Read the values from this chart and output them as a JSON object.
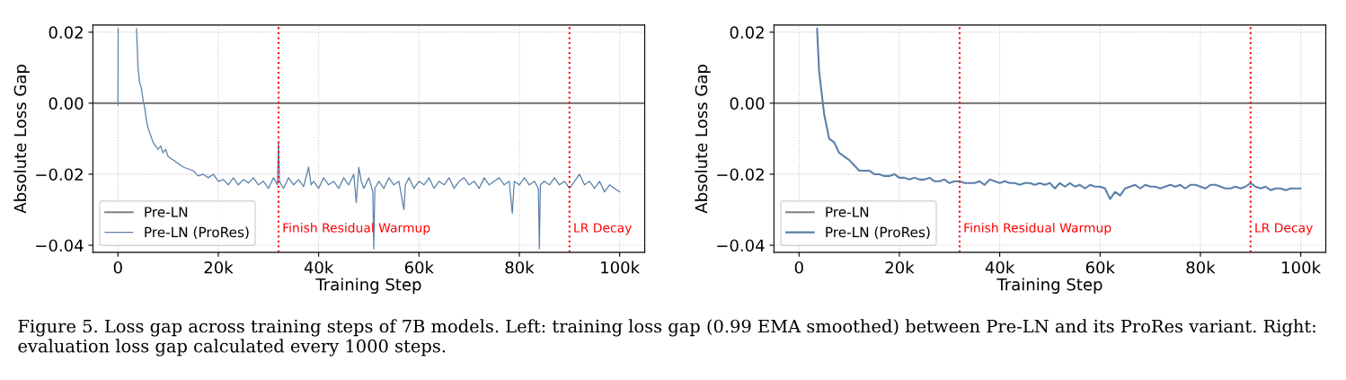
{
  "chart_data": [
    {
      "type": "line",
      "xlabel": "Training Step",
      "ylabel": "Absolute Loss Gap",
      "xlim": [
        -5000,
        105000
      ],
      "ylim": [
        -0.042,
        0.022
      ],
      "xticks": [
        {
          "value": 0,
          "label": "0"
        },
        {
          "value": 20000,
          "label": "20k"
        },
        {
          "value": 40000,
          "label": "40k"
        },
        {
          "value": 60000,
          "label": "60k"
        },
        {
          "value": 80000,
          "label": "80k"
        },
        {
          "value": 100000,
          "label": "100k"
        }
      ],
      "yticks": [
        {
          "value": -0.04,
          "label": "−0.04"
        },
        {
          "value": -0.02,
          "label": "−0.02"
        },
        {
          "value": 0,
          "label": "0.00"
        },
        {
          "value": 0.02,
          "label": "0.02"
        }
      ],
      "grid": true,
      "legend": "bottom left",
      "ref_lines": [
        {
          "axis": "x",
          "value": 32000,
          "label": "Finish Residual Warmup",
          "color": "#ff0000",
          "line_style": "dotted"
        },
        {
          "axis": "x",
          "value": 90000,
          "label": "LR Decay",
          "color": "#ff0000",
          "line_style": "dotted"
        }
      ],
      "series": [
        {
          "name": "Pre-LN",
          "color": "#808080",
          "x": [
            -5000,
            105000
          ],
          "values": [
            0,
            0
          ]
        },
        {
          "name": "Pre-LN (ProRes)",
          "color": "#5b80a9",
          "x": [
            0,
            50,
            2000,
            3700,
            4000,
            4300,
            4700,
            5000,
            5300,
            5700,
            6000,
            6500,
            7000,
            7500,
            8000,
            8500,
            9000,
            9500,
            10000,
            11000,
            12000,
            13000,
            14000,
            15000,
            16000,
            17000,
            18000,
            19000,
            20000,
            21000,
            22000,
            23000,
            24000,
            25000,
            26000,
            27000,
            28000,
            29000,
            30000,
            31000,
            31800,
            32000,
            32200,
            33000,
            34000,
            35000,
            36000,
            37000,
            38000,
            38500,
            39000,
            40000,
            41000,
            42000,
            43000,
            44000,
            45000,
            46000,
            47000,
            47500,
            48000,
            48500,
            49000,
            50000,
            50800,
            51000,
            51200,
            52000,
            53000,
            54000,
            55000,
            56000,
            57000,
            57300,
            58000,
            59000,
            60000,
            61000,
            62000,
            63000,
            64000,
            65000,
            66000,
            67000,
            68000,
            69000,
            70000,
            71000,
            72000,
            73000,
            74000,
            75000,
            76000,
            77000,
            78000,
            78600,
            79000,
            80000,
            81000,
            82000,
            83000,
            83800,
            84000,
            84200,
            85000,
            86000,
            87000,
            88000,
            89000,
            90000,
            91000,
            92000,
            93000,
            94000,
            95000,
            96000,
            97000,
            98000,
            99000,
            100000
          ],
          "values": [
            -0.0005,
            0.021,
            null,
            0.021,
            0.01,
            0.006,
            0.004,
            0.001,
            -0.001,
            -0.005,
            -0.007,
            -0.009,
            -0.011,
            -0.012,
            -0.013,
            -0.012,
            -0.014,
            -0.013,
            -0.015,
            -0.016,
            -0.017,
            -0.018,
            -0.0185,
            -0.019,
            -0.0205,
            -0.02,
            -0.021,
            -0.02,
            -0.022,
            -0.0215,
            -0.023,
            -0.021,
            -0.023,
            -0.0215,
            -0.0225,
            -0.021,
            -0.023,
            -0.022,
            -0.024,
            -0.021,
            -0.023,
            -0.011,
            -0.022,
            -0.024,
            -0.021,
            -0.023,
            -0.0215,
            -0.0235,
            -0.018,
            -0.023,
            -0.022,
            -0.024,
            -0.021,
            -0.023,
            -0.022,
            -0.024,
            -0.021,
            -0.023,
            -0.02,
            -0.028,
            -0.018,
            -0.022,
            -0.024,
            -0.021,
            -0.025,
            -0.041,
            -0.024,
            -0.022,
            -0.024,
            -0.021,
            -0.023,
            -0.022,
            -0.03,
            -0.023,
            -0.021,
            -0.024,
            -0.022,
            -0.023,
            -0.021,
            -0.024,
            -0.022,
            -0.023,
            -0.021,
            -0.024,
            -0.022,
            -0.021,
            -0.023,
            -0.022,
            -0.024,
            -0.021,
            -0.023,
            -0.022,
            -0.021,
            -0.023,
            -0.022,
            -0.031,
            -0.022,
            -0.023,
            -0.021,
            -0.023,
            -0.022,
            -0.024,
            -0.041,
            -0.023,
            -0.022,
            -0.023,
            -0.021,
            -0.023,
            -0.022,
            -0.024,
            -0.022,
            -0.02,
            -0.023,
            -0.022,
            -0.024,
            -0.022,
            -0.025,
            -0.023,
            -0.024,
            -0.025
          ]
        }
      ],
      "annotations": [
        "Figure 5. Loss gap across training steps of 7B models. Left: training loss gap (0.99 EMA smoothed) between Pre-LN and its ProRes variant. Right: evaluation loss gap calculated every 1000 steps."
      ]
    },
    {
      "type": "line",
      "xlabel": "Training Step",
      "ylabel": "Absolute Loss Gap",
      "xlim": [
        -5000,
        105000
      ],
      "ylim": [
        -0.042,
        0.022
      ],
      "xticks": [
        {
          "value": 0,
          "label": "0"
        },
        {
          "value": 20000,
          "label": "20k"
        },
        {
          "value": 40000,
          "label": "40k"
        },
        {
          "value": 60000,
          "label": "60k"
        },
        {
          "value": 80000,
          "label": "80k"
        },
        {
          "value": 100000,
          "label": "100k"
        }
      ],
      "yticks": [
        {
          "value": -0.04,
          "label": "−0.04"
        },
        {
          "value": -0.02,
          "label": "−0.02"
        },
        {
          "value": 0,
          "label": "0.00"
        },
        {
          "value": 0.02,
          "label": "0.02"
        }
      ],
      "grid": true,
      "legend": "bottom left",
      "ref_lines": [
        {
          "axis": "x",
          "value": 32000,
          "label": "Finish Residual Warmup",
          "color": "#ff0000",
          "line_style": "dotted"
        },
        {
          "axis": "x",
          "value": 90000,
          "label": "LR Decay",
          "color": "#ff0000",
          "line_style": "dotted"
        }
      ],
      "series": [
        {
          "name": "Pre-LN",
          "color": "#808080",
          "x": [
            -5000,
            105000
          ],
          "values": [
            0,
            0
          ]
        },
        {
          "name": "Pre-LN (ProRes)",
          "color": "#5b80a9",
          "x": [
            3600,
            4000,
            5000,
            6000,
            7000,
            8000,
            9000,
            10000,
            11000,
            12000,
            13000,
            14000,
            15000,
            16000,
            17000,
            18000,
            19000,
            20000,
            21000,
            22000,
            23000,
            24000,
            25000,
            26000,
            27000,
            28000,
            29000,
            30000,
            31000,
            32000,
            33000,
            34000,
            35000,
            36000,
            37000,
            38000,
            39000,
            40000,
            41000,
            42000,
            43000,
            44000,
            45000,
            46000,
            47000,
            48000,
            49000,
            50000,
            51000,
            52000,
            53000,
            54000,
            55000,
            56000,
            57000,
            58000,
            59000,
            60000,
            61000,
            62000,
            63000,
            64000,
            65000,
            66000,
            67000,
            68000,
            69000,
            70000,
            71000,
            72000,
            73000,
            74000,
            75000,
            76000,
            77000,
            78000,
            79000,
            80000,
            81000,
            82000,
            83000,
            84000,
            85000,
            86000,
            87000,
            88000,
            89000,
            90000,
            91000,
            92000,
            93000,
            94000,
            95000,
            96000,
            97000,
            98000,
            99000,
            100000
          ],
          "values": [
            0.021,
            0.009,
            -0.003,
            -0.01,
            -0.011,
            -0.014,
            -0.015,
            -0.016,
            -0.0175,
            -0.019,
            -0.019,
            -0.019,
            -0.02,
            -0.02,
            -0.0205,
            -0.0205,
            -0.02,
            -0.021,
            -0.021,
            -0.0215,
            -0.021,
            -0.0215,
            -0.0215,
            -0.021,
            -0.022,
            -0.022,
            -0.0215,
            -0.0225,
            -0.022,
            -0.022,
            -0.0225,
            -0.0225,
            -0.0225,
            -0.022,
            -0.023,
            -0.0215,
            -0.022,
            -0.0225,
            -0.022,
            -0.0225,
            -0.0225,
            -0.023,
            -0.0225,
            -0.0225,
            -0.023,
            -0.0225,
            -0.023,
            -0.0225,
            -0.024,
            -0.0225,
            -0.0235,
            -0.0225,
            -0.0235,
            -0.023,
            -0.024,
            -0.023,
            -0.0235,
            -0.0235,
            -0.024,
            -0.027,
            -0.025,
            -0.026,
            -0.024,
            -0.0235,
            -0.023,
            -0.024,
            -0.023,
            -0.0235,
            -0.0235,
            -0.024,
            -0.0235,
            -0.023,
            -0.0235,
            -0.023,
            -0.024,
            -0.023,
            -0.023,
            -0.0235,
            -0.024,
            -0.023,
            -0.023,
            -0.0235,
            -0.024,
            -0.024,
            -0.0235,
            -0.024,
            -0.0235,
            -0.0225,
            -0.0235,
            -0.024,
            -0.0235,
            -0.0245,
            -0.024,
            -0.024,
            -0.0245,
            -0.024,
            -0.024,
            -0.024
          ]
        }
      ]
    }
  ]
}
